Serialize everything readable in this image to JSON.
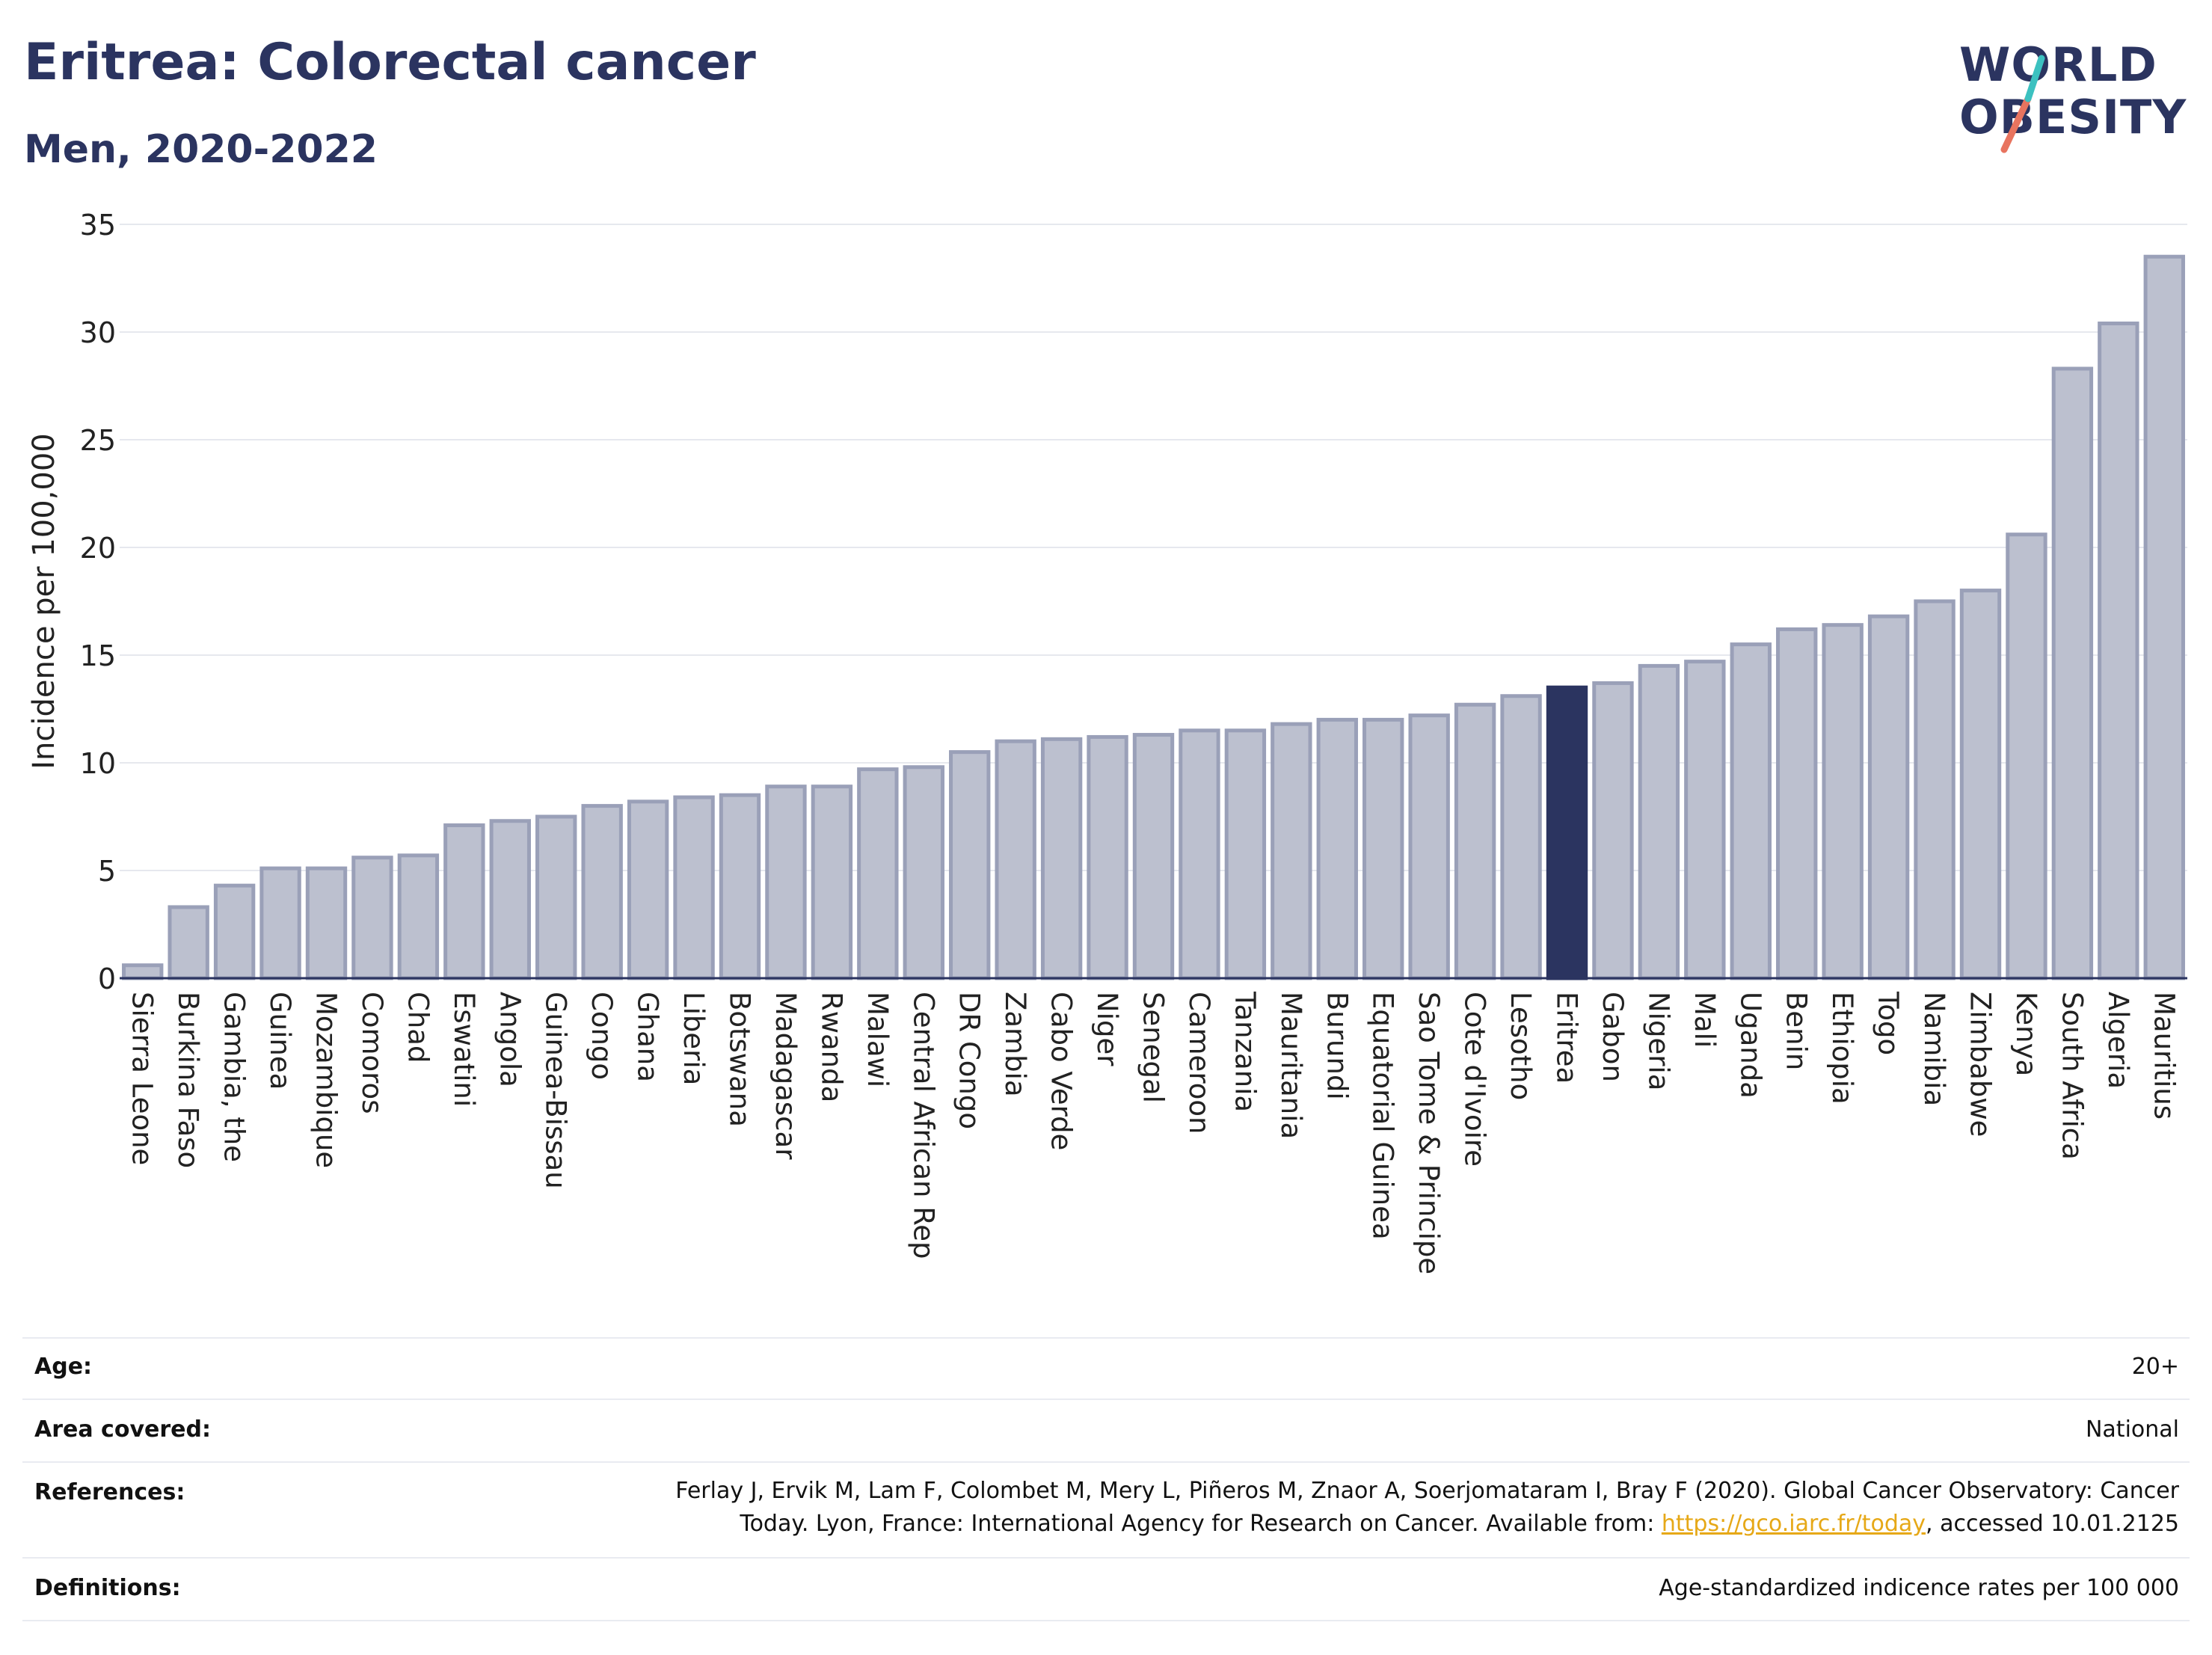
{
  "header": {
    "title": "Eritrea: Colorectal cancer",
    "subtitle": "Men, 2020-2022"
  },
  "logo": {
    "line1": "WORLD",
    "line2": "OBESITY"
  },
  "chart_data": {
    "type": "bar",
    "ylabel": "Incidence per 100,000",
    "ylim": [
      0,
      35
    ],
    "yticks": [
      0,
      5,
      10,
      15,
      20,
      25,
      30,
      35
    ],
    "grid": true,
    "highlight": "Eritrea",
    "colors": {
      "bar": "#bcc0cf",
      "bar_edge": "#9aa0b8",
      "highlight": "#2b3460",
      "grid": "#e6e8ee",
      "axis": "#2b3460"
    },
    "categories": [
      "Sierra Leone",
      "Burkina Faso",
      "Gambia, the",
      "Guinea",
      "Mozambique",
      "Comoros",
      "Chad",
      "Eswatini",
      "Angola",
      "Guinea-Bissau",
      "Congo",
      "Ghana",
      "Liberia",
      "Botswana",
      "Madagascar",
      "Rwanda",
      "Malawi",
      "Central African Rep",
      "DR Congo",
      "Zambia",
      "Cabo Verde",
      "Niger",
      "Senegal",
      "Cameroon",
      "Tanzania",
      "Mauritania",
      "Burundi",
      "Equatorial Guinea",
      "Sao Tome & Principe",
      "Cote d'Ivoire",
      "Lesotho",
      "Eritrea",
      "Gabon",
      "Nigeria",
      "Mali",
      "Uganda",
      "Benin",
      "Ethiopia",
      "Togo",
      "Namibia",
      "Zimbabwe",
      "Kenya",
      "South Africa",
      "Algeria",
      "Mauritius"
    ],
    "values": [
      0.6,
      3.3,
      4.3,
      5.1,
      5.1,
      5.6,
      5.7,
      7.1,
      7.3,
      7.5,
      8.0,
      8.2,
      8.4,
      8.5,
      8.9,
      8.9,
      9.7,
      9.8,
      10.5,
      11.0,
      11.1,
      11.2,
      11.3,
      11.5,
      11.5,
      11.8,
      12.0,
      12.0,
      12.2,
      12.7,
      13.1,
      13.5,
      13.7,
      14.5,
      14.7,
      15.5,
      16.2,
      16.4,
      16.8,
      17.5,
      18.0,
      20.6,
      28.3,
      30.4,
      33.5
    ]
  },
  "info": [
    {
      "label": "Age:",
      "value": "20+"
    },
    {
      "label": "Area covered:",
      "value": "National"
    },
    {
      "label": "References:",
      "value_line1": "Ferlay J, Ervik M, Lam F, Colombet M, Mery L, Piñeros M, Znaor A, Soerjomataram I, Bray F (2020). Global Cancer Observatory: Cancer",
      "value_line2_pre": "Today. Lyon, France: International Agency for Research on Cancer. Available from: ",
      "link": "https://gco.iarc.fr/today",
      "value_line2_post": ", accessed 10.01.2125"
    },
    {
      "label": "Definitions:",
      "value": "Age-standardized indicence rates per 100 000"
    }
  ]
}
